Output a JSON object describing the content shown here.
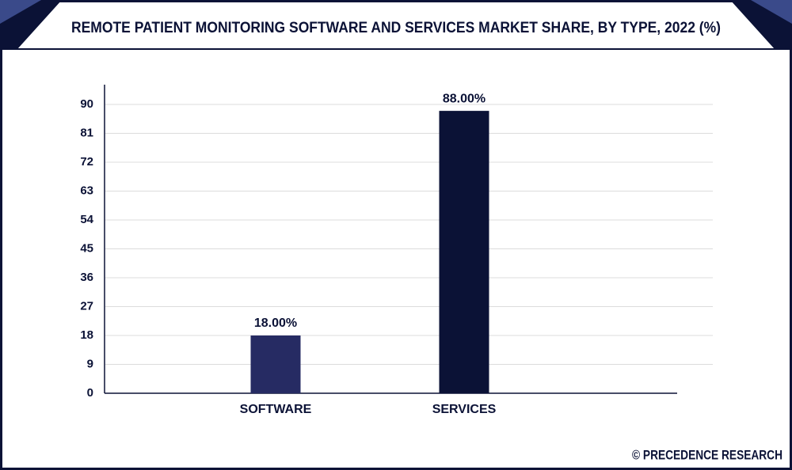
{
  "chart_data": {
    "type": "bar",
    "title": "REMOTE PATIENT MONITORING SOFTWARE AND SERVICES MARKET SHARE, BY TYPE, 2022 (%)",
    "categories": [
      "SOFTWARE",
      "SERVICES"
    ],
    "values": [
      18,
      88
    ],
    "value_labels": [
      "18.00%",
      "88.00%"
    ],
    "colors": [
      "#262b63",
      "#0b1236"
    ],
    "ylim": [
      0,
      90
    ],
    "yticks": [
      0,
      9,
      18,
      27,
      36,
      45,
      54,
      63,
      72,
      81,
      90
    ],
    "grid": true,
    "source": "© PRECEDENCE RESEARCH"
  }
}
